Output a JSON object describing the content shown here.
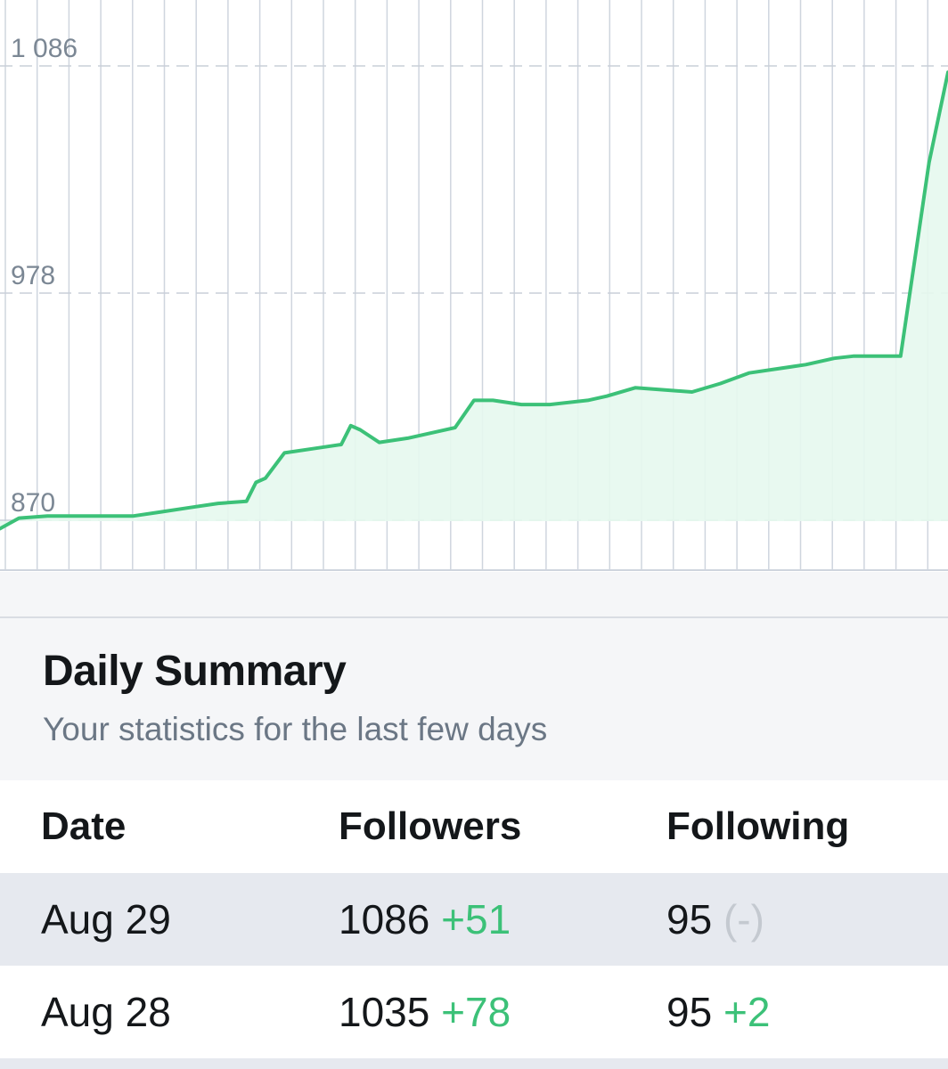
{
  "chart_data": {
    "type": "area",
    "y_ticks": [
      "1 086",
      "978",
      "870"
    ],
    "y_tick_values": [
      1086,
      978,
      870
    ],
    "ylim": [
      846,
      1110
    ],
    "grid": true,
    "color": "#3cc178",
    "fill_color": "#e6f8ee",
    "x_index": [
      0,
      2,
      5,
      8,
      11,
      14,
      17,
      20,
      23,
      26,
      27,
      28,
      30,
      33,
      36,
      37,
      38,
      40,
      43,
      46,
      48,
      50,
      52,
      55,
      58,
      62,
      64,
      67,
      70,
      73,
      76,
      79,
      82,
      85,
      88,
      90,
      92,
      95,
      98,
      100
    ],
    "y": [
      866,
      871,
      872,
      872,
      872,
      872,
      874,
      876,
      878,
      879,
      888,
      890,
      902,
      904,
      906,
      915,
      913,
      907,
      909,
      912,
      914,
      927,
      927,
      925,
      925,
      927,
      929,
      933,
      932,
      931,
      935,
      940,
      942,
      944,
      947,
      948,
      948,
      948,
      1040,
      1083
    ]
  },
  "summary": {
    "title": "Daily Summary",
    "subtitle": "Your statistics for the last few days"
  },
  "table": {
    "headers": [
      "Date",
      "Followers",
      "Following"
    ],
    "rows": [
      {
        "date": "Aug 29",
        "followers": "1086",
        "followers_delta": "+51",
        "following": "95",
        "following_delta": "(-)"
      },
      {
        "date": "Aug 28",
        "followers": "1035",
        "followers_delta": "+78",
        "following": "95",
        "following_delta": "+2"
      }
    ]
  }
}
